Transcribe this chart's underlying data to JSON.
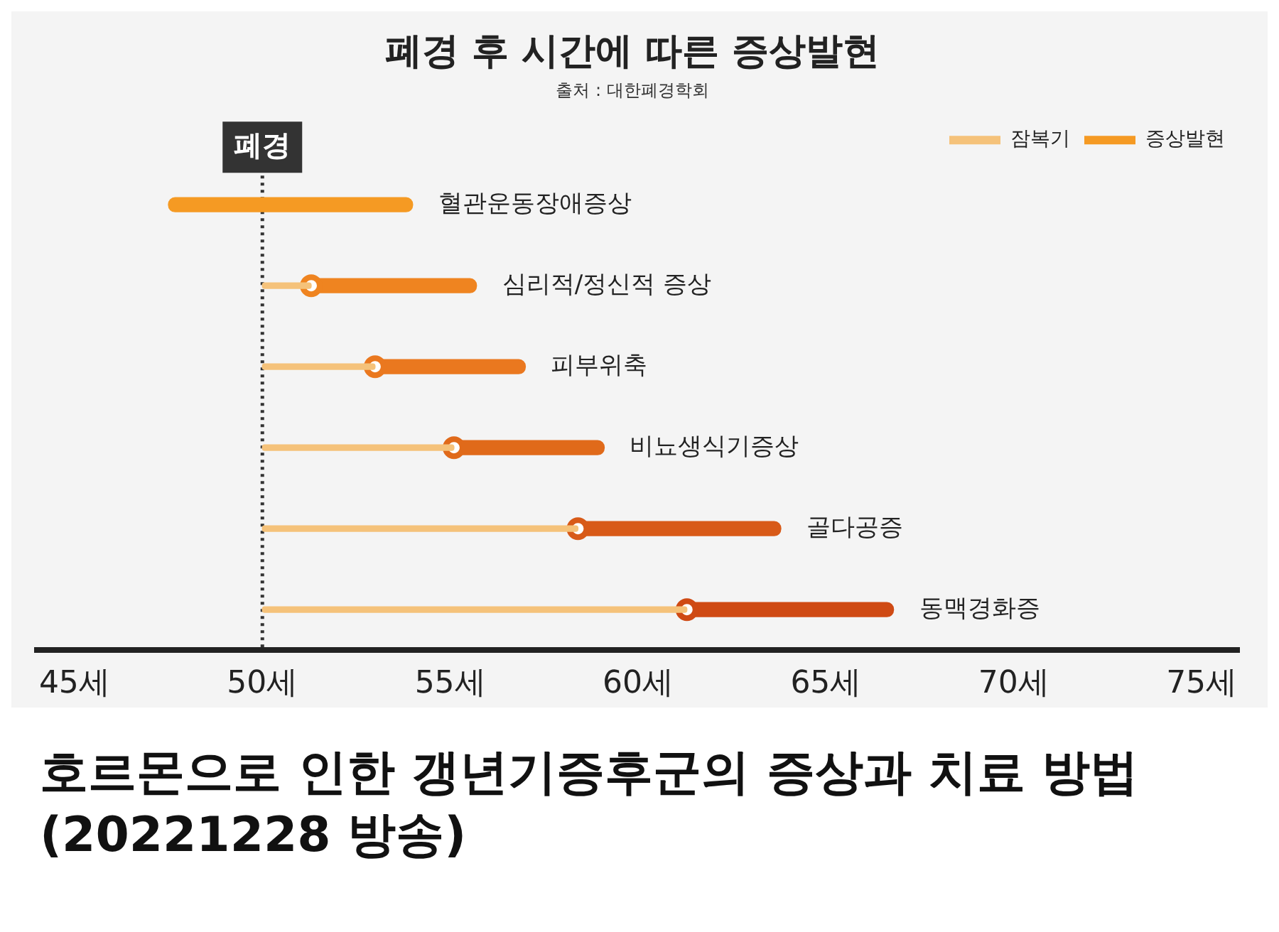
{
  "chart_data": {
    "type": "bar",
    "orientation": "horizontal",
    "title": "폐경 후 시간에 따른 증상발현",
    "subtitle": "출처 : 대한폐경학회",
    "categories": [
      "혈관운동장애증상",
      "심리적/정신적 증상",
      "피부위축",
      "비뇨생식기증상",
      "골다공증",
      "동맥경화증"
    ],
    "series": [
      {
        "name": "잠복기",
        "color": "#f5c27a",
        "line_style": "dotted",
        "base": [
          null,
          50,
          50,
          50,
          50,
          50
        ],
        "values": [
          null,
          1.3,
          3,
          5.1,
          8.4,
          11.3
        ]
      },
      {
        "type": "scatter",
        "color": "#d85a18",
        "marker": "circle",
        "colors": [
          "#ef8420",
          "#ef8420",
          "#ea781f",
          "#e06a1a",
          "#d85a18",
          "#cf4a14"
        ],
        "values": [
          null,
          51.3,
          53,
          55.1,
          58.4,
          61.3
        ]
      },
      {
        "name": "증상발현",
        "color": "#e0601c",
        "colors": [
          "#f59a23",
          "#ef8420",
          "#ea781f",
          "#e06a1a",
          "#d85a18",
          "#cf4a14"
        ],
        "base": [
          47.5,
          51.3,
          53,
          55.1,
          58.4,
          61.3
        ],
        "values": [
          6.5,
          4.4,
          4,
          4,
          5.4,
          5.5
        ]
      }
    ],
    "xlim": [
      44,
      76
    ],
    "xticks": [
      {
        "value": 45,
        "label": "45세"
      },
      {
        "value": 50,
        "label": "50세"
      },
      {
        "value": 55,
        "label": "55세"
      },
      {
        "value": 60,
        "label": "60세"
      },
      {
        "value": 65,
        "label": "65세"
      },
      {
        "value": 70,
        "label": "70세"
      },
      {
        "value": 75,
        "label": "75세"
      }
    ],
    "ref_lines": [
      {
        "axis": "x",
        "value": 50,
        "label": "폐경",
        "color": "#333333",
        "line_style": "dotted"
      }
    ],
    "grid": false,
    "legend": "top right",
    "tick_labels": "x",
    "annotations": [
      "호르몬으로 인한 갱년기증후군의 증상과 치료 방법 (20221228 방송)"
    ]
  }
}
